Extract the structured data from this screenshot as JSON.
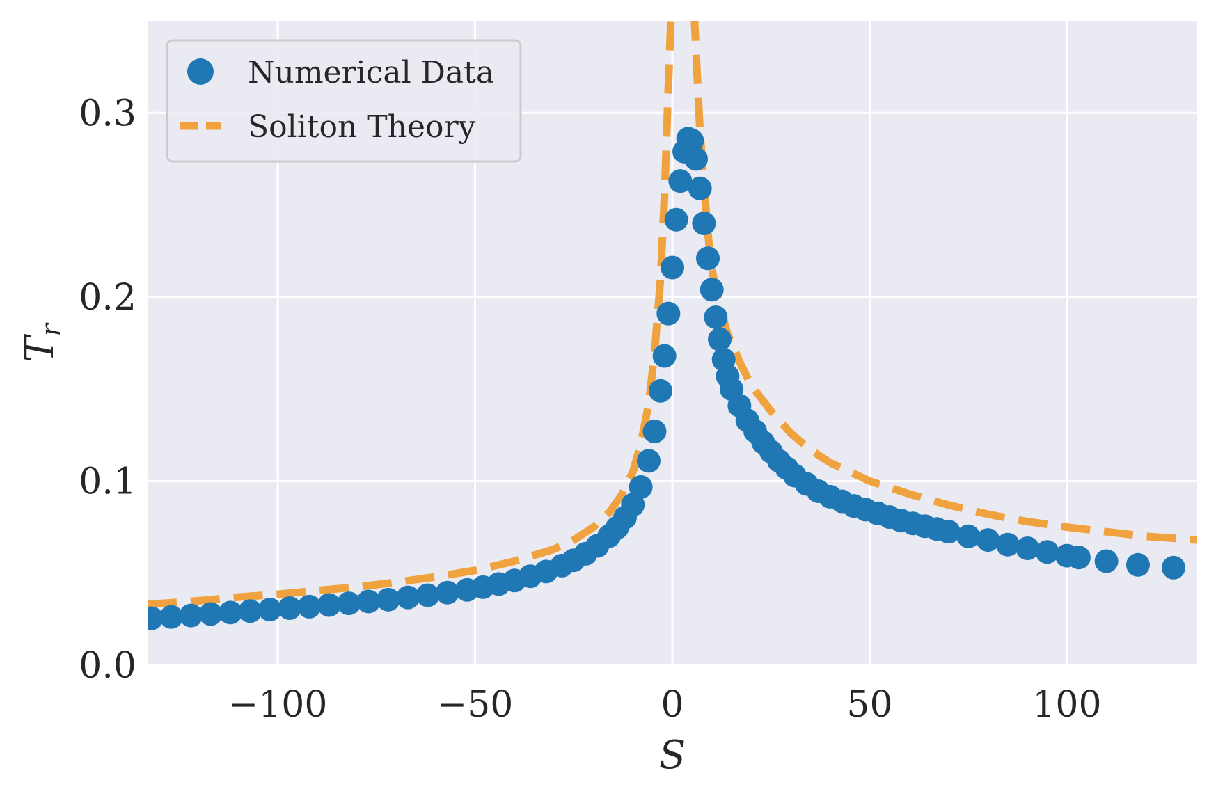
{
  "chart_data": {
    "type": "scatter",
    "title": "",
    "xlabel": "S",
    "ylabel_base": "T",
    "ylabel_sub": "r",
    "xlim": [
      -133,
      133
    ],
    "ylim": [
      0.0,
      0.35
    ],
    "grid": true,
    "legend_position": "top-left",
    "xticks": [
      {
        "value": -100,
        "label": "−100"
      },
      {
        "value": -50,
        "label": "−50"
      },
      {
        "value": 0,
        "label": "0"
      },
      {
        "value": 50,
        "label": "50"
      },
      {
        "value": 100,
        "label": "100"
      }
    ],
    "yticks": [
      {
        "value": 0.0,
        "label": "0.0"
      },
      {
        "value": 0.1,
        "label": "0.1"
      },
      {
        "value": 0.2,
        "label": "0.2"
      },
      {
        "value": 0.3,
        "label": "0.3"
      }
    ],
    "series": [
      {
        "name": "Numerical Data",
        "kind": "scatter",
        "color": "#1f77b4",
        "points": [
          [
            -132,
            0.0255
          ],
          [
            -127,
            0.0262
          ],
          [
            -122,
            0.027
          ],
          [
            -117,
            0.0278
          ],
          [
            -112,
            0.0286
          ],
          [
            -107,
            0.0294
          ],
          [
            -102,
            0.0302
          ],
          [
            -97,
            0.031
          ],
          [
            -92,
            0.0318
          ],
          [
            -87,
            0.0327
          ],
          [
            -82,
            0.0336
          ],
          [
            -77,
            0.0346
          ],
          [
            -72,
            0.0356
          ],
          [
            -67,
            0.0368
          ],
          [
            -62,
            0.038
          ],
          [
            -57,
            0.0394
          ],
          [
            -52,
            0.0409
          ],
          [
            -48,
            0.0424
          ],
          [
            -44,
            0.0441
          ],
          [
            -40,
            0.046
          ],
          [
            -36,
            0.0483
          ],
          [
            -32,
            0.0509
          ],
          [
            -28,
            0.0541
          ],
          [
            -25,
            0.057
          ],
          [
            -22,
            0.0605
          ],
          [
            -19,
            0.0648
          ],
          [
            -16,
            0.0702
          ],
          [
            -14,
            0.0747
          ],
          [
            -12,
            0.0802
          ],
          [
            -10,
            0.0872
          ],
          [
            -8,
            0.0968
          ],
          [
            -6,
            0.111
          ],
          [
            -4.5,
            0.127
          ],
          [
            -3,
            0.149
          ],
          [
            -2,
            0.168
          ],
          [
            -1,
            0.191
          ],
          [
            0,
            0.216
          ],
          [
            1,
            0.242
          ],
          [
            2,
            0.263
          ],
          [
            3,
            0.279
          ],
          [
            4,
            0.286
          ],
          [
            5,
            0.285
          ],
          [
            6,
            0.275
          ],
          [
            7,
            0.259
          ],
          [
            8,
            0.24
          ],
          [
            9,
            0.221
          ],
          [
            10,
            0.204
          ],
          [
            11,
            0.189
          ],
          [
            12,
            0.177
          ],
          [
            13,
            0.166
          ],
          [
            14,
            0.157
          ],
          [
            15,
            0.15
          ],
          [
            17,
            0.141
          ],
          [
            19,
            0.133
          ],
          [
            21,
            0.127
          ],
          [
            23,
            0.121
          ],
          [
            25,
            0.116
          ],
          [
            27,
            0.111
          ],
          [
            29,
            0.107
          ],
          [
            31,
            0.103
          ],
          [
            34,
            0.0985
          ],
          [
            37,
            0.0945
          ],
          [
            40,
            0.0915
          ],
          [
            43,
            0.089
          ],
          [
            46,
            0.0865
          ],
          [
            49,
            0.0845
          ],
          [
            52,
            0.0825
          ],
          [
            55,
            0.0805
          ],
          [
            58,
            0.0785
          ],
          [
            61,
            0.077
          ],
          [
            64,
            0.0755
          ],
          [
            67,
            0.074
          ],
          [
            70,
            0.0725
          ],
          [
            75,
            0.07
          ],
          [
            80,
            0.068
          ],
          [
            85,
            0.0655
          ],
          [
            90,
            0.0635
          ],
          [
            95,
            0.0615
          ],
          [
            100,
            0.0595
          ],
          [
            103,
            0.0585
          ],
          [
            110,
            0.0565
          ],
          [
            118,
            0.0545
          ],
          [
            127,
            0.053
          ]
        ]
      },
      {
        "name": "Soliton Theory",
        "kind": "line",
        "style": "dashed",
        "color": "#f0a23f",
        "points": [
          [
            -133,
            0.033
          ],
          [
            -120,
            0.035
          ],
          [
            -110,
            0.037
          ],
          [
            -100,
            0.0385
          ],
          [
            -90,
            0.0405
          ],
          [
            -80,
            0.0425
          ],
          [
            -70,
            0.045
          ],
          [
            -60,
            0.048
          ],
          [
            -50,
            0.0515
          ],
          [
            -40,
            0.0565
          ],
          [
            -30,
            0.063
          ],
          [
            -25,
            0.068
          ],
          [
            -20,
            0.075
          ],
          [
            -16,
            0.083
          ],
          [
            -13,
            0.092
          ],
          [
            -10,
            0.105
          ],
          [
            -8,
            0.12
          ],
          [
            -6,
            0.142
          ],
          [
            -4.5,
            0.17
          ],
          [
            -3,
            0.21
          ],
          [
            -2,
            0.255
          ],
          [
            -1,
            0.315
          ],
          [
            -0.3,
            0.355
          ],
          [
            null,
            null
          ],
          [
            5.5,
            0.355
          ],
          [
            6.3,
            0.32
          ],
          [
            7,
            0.29
          ],
          [
            8,
            0.26
          ],
          [
            9,
            0.235
          ],
          [
            10,
            0.215
          ],
          [
            12,
            0.195
          ],
          [
            14,
            0.18
          ],
          [
            17,
            0.165
          ],
          [
            20,
            0.152
          ],
          [
            25,
            0.138
          ],
          [
            30,
            0.126
          ],
          [
            35,
            0.117
          ],
          [
            40,
            0.11
          ],
          [
            50,
            0.1
          ],
          [
            60,
            0.093
          ],
          [
            70,
            0.087
          ],
          [
            80,
            0.082
          ],
          [
            90,
            0.078
          ],
          [
            100,
            0.075
          ],
          [
            110,
            0.0725
          ],
          [
            120,
            0.07
          ],
          [
            133,
            0.068
          ]
        ]
      }
    ]
  }
}
